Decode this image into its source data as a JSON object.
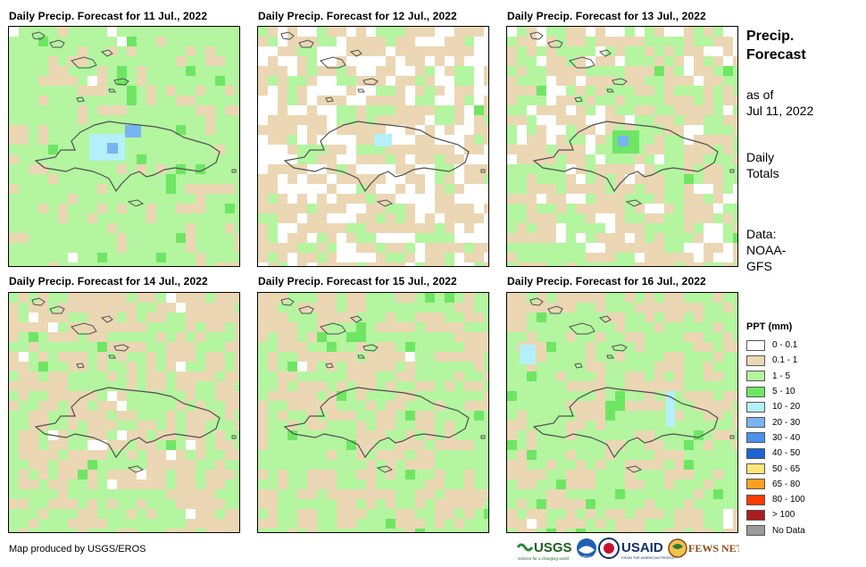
{
  "panels": [
    {
      "title": "Daily Precip. Forecast for 11 Jul., 2022",
      "map_label": "precip-map-11-jul"
    },
    {
      "title": "Daily Precip. Forecast for 12 Jul., 2022",
      "map_label": "precip-map-12-jul"
    },
    {
      "title": "Daily Precip. Forecast for 13 Jul., 2022",
      "map_label": "precip-map-13-jul"
    },
    {
      "title": "Daily Precip. Forecast for 14 Jul., 2022",
      "map_label": "precip-map-14-jul"
    },
    {
      "title": "Daily Precip. Forecast for 15 Jul., 2022",
      "map_label": "precip-map-15-jul"
    },
    {
      "title": "Daily Precip. Forecast for 16 Jul., 2022",
      "map_label": "precip-map-16-jul"
    }
  ],
  "sidebar": {
    "title_line1": "Precip.",
    "title_line2": "Forecast",
    "asof_line1": "as of",
    "asof_line2": "Jul 11, 2022",
    "totals_line1": "Daily",
    "totals_line2": "Totals",
    "data_line1": "Data:",
    "data_line2": "NOAA-",
    "data_line3": "GFS"
  },
  "legend": {
    "title": "PPT (mm)",
    "items": [
      {
        "label": "0 - 0.1",
        "color": "#ffffff"
      },
      {
        "label": "0.1 - 1",
        "color": "#ebd7b4"
      },
      {
        "label": "1 - 5",
        "color": "#b4f5a0"
      },
      {
        "label": "5 - 10",
        "color": "#6ee664"
      },
      {
        "label": "10 - 20",
        "color": "#b4f0fa"
      },
      {
        "label": "20 - 30",
        "color": "#78b4f0"
      },
      {
        "label": "30 - 40",
        "color": "#4b91eb"
      },
      {
        "label": "40 - 50",
        "color": "#1e64d2"
      },
      {
        "label": "50 - 65",
        "color": "#ffe678"
      },
      {
        "label": "65 - 80",
        "color": "#ffa01e"
      },
      {
        "label": "80 - 100",
        "color": "#ff3c00"
      },
      {
        "label": "> 100",
        "color": "#aa1e1e"
      },
      {
        "label": "No Data",
        "color": "#9b9b9b"
      }
    ]
  },
  "credit": "Map produced by USGS/EROS",
  "logos": {
    "usgs": "USGS",
    "usgs_tagline": "science for a changing world",
    "noaa": "NOAA",
    "usaid": "USAID",
    "usaid_tagline": "FROM THE AMERICAN PEOPLE",
    "fewsnet": "FEWS NET"
  },
  "colors": {
    "white": "#ffffff",
    "tan": "#ebd7b4",
    "lightgreen": "#b4f5a0",
    "green": "#6ee664",
    "cyan": "#b4f0fa",
    "blue1": "#78b4f0",
    "blue2": "#4b91eb",
    "coast": "#505050"
  }
}
